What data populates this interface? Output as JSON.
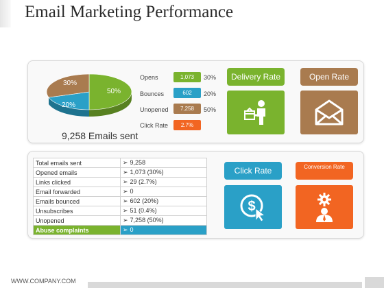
{
  "title": "Email Marketing Performance",
  "pie": {
    "slices": [
      {
        "label": "50%",
        "value": 50,
        "color": "#7ab32e"
      },
      {
        "label": "20%",
        "value": 20,
        "color": "#2aa0c7"
      },
      {
        "label": "30%",
        "value": 30,
        "color": "#a97b4f"
      }
    ]
  },
  "emails_sent": "9,258 Emails sent",
  "metrics": [
    {
      "label": "Opens",
      "value": "1,073",
      "pct": "30%",
      "color": "#7ab32e"
    },
    {
      "label": "Bounces",
      "value": "602",
      "pct": "20%",
      "color": "#2aa0c7"
    },
    {
      "label": "Unopened",
      "value": "7,258",
      "pct": "50%",
      "color": "#a97b4f"
    },
    {
      "label": "Click Rate",
      "value": "2.7%",
      "pct": "",
      "color": "#f26522"
    }
  ],
  "tiles": {
    "delivery_rate": {
      "label": "Delivery Rate",
      "color": "#7ab32e",
      "icon": "delivery-person-icon"
    },
    "open_rate": {
      "label": "Open Rate",
      "color": "#a97b4f",
      "icon": "envelope-open-icon"
    },
    "click_rate": {
      "label": "Click Rate",
      "color": "#2aa0c7",
      "icon": "dollar-click-icon"
    },
    "conversion_rate": {
      "label": "Conversion Rate",
      "color": "#f26522",
      "icon": "user-gear-icon"
    }
  },
  "stats_table": [
    {
      "label": "Total emails sent",
      "value": "9,258"
    },
    {
      "label": "Opened emails",
      "value": "1,073 (30%)"
    },
    {
      "label": "Links clicked",
      "value": "29 (2.7%)"
    },
    {
      "label": "Email forwarded",
      "value": "0"
    },
    {
      "label": "Emails bounced",
      "value": "602 (20%)"
    },
    {
      "label": "Unsubscribes",
      "value": "51 (0.4%)"
    },
    {
      "label": "Unopened",
      "value": "7,258 (50%)"
    },
    {
      "label": "Abuse complaints",
      "value": "0"
    }
  ],
  "arrow_glyph": "➢",
  "footer": "WWW.COMPANY.COM"
}
